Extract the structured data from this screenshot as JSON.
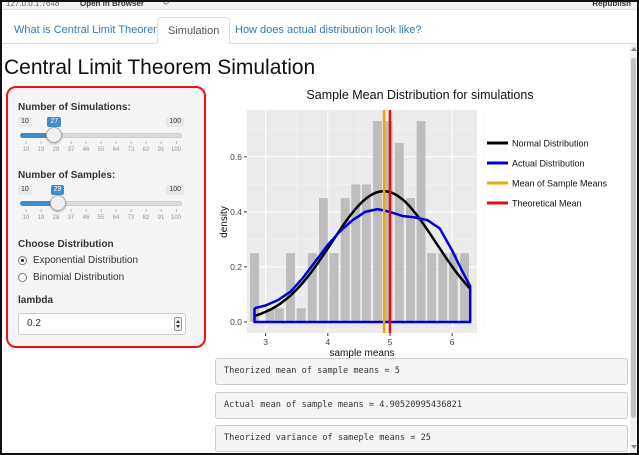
{
  "browser": {
    "url": "127.0.0.1:7648",
    "open_in_browser": "Open in Browser",
    "refresh_icon": "refresh-icon",
    "publish": "Republish"
  },
  "tabs": [
    {
      "label": "What is Central Limit Theorem",
      "active": false
    },
    {
      "label": "Simulation",
      "active": true
    },
    {
      "label": "How does actual distribution look like?",
      "active": false
    }
  ],
  "page_title": "Central Limit Theorem Simulation",
  "sidebar": {
    "simulations": {
      "label": "Number of Simulations:",
      "min": 10,
      "max": 100,
      "value": 27,
      "ticks": [
        "10",
        "19",
        "28",
        "37",
        "46",
        "55",
        "64",
        "73",
        "82",
        "91",
        "100"
      ]
    },
    "samples": {
      "label": "Number of Samples:",
      "min": 10,
      "max": 100,
      "value": 29,
      "ticks": [
        "10",
        "19",
        "28",
        "37",
        "46",
        "55",
        "64",
        "73",
        "82",
        "91",
        "100"
      ]
    },
    "distribution": {
      "label": "Choose Distribution",
      "options": [
        "Exponential Distribution",
        "Binomial Distribution"
      ],
      "selected": "Exponential Distribution"
    },
    "lambda": {
      "label": "lambda",
      "value": "0.2"
    }
  },
  "chart_data": {
    "type": "bar",
    "title": "Sample Mean Distribution for simulations",
    "xlabel": "sample means",
    "ylabel": "density",
    "xlim": [
      2.7,
      6.4
    ],
    "ylim": [
      -0.04,
      0.77
    ],
    "xticks": [
      3,
      4,
      5,
      6
    ],
    "yticks": [
      "0.0",
      "0.2",
      "0.4",
      "0.6"
    ],
    "grid": true,
    "legend_position": "right",
    "bin_width": 0.175,
    "histogram_bins": [
      {
        "x": 2.82,
        "density": 0.25
      },
      {
        "x": 3.07,
        "density": 0.05
      },
      {
        "x": 3.22,
        "density": 0.05
      },
      {
        "x": 3.4,
        "density": 0.25
      },
      {
        "x": 3.57,
        "density": 0.05
      },
      {
        "x": 3.75,
        "density": 0.25
      },
      {
        "x": 3.93,
        "density": 0.45
      },
      {
        "x": 4.1,
        "density": 0.25
      },
      {
        "x": 4.28,
        "density": 0.45
      },
      {
        "x": 4.45,
        "density": 0.5
      },
      {
        "x": 4.62,
        "density": 0.5
      },
      {
        "x": 4.8,
        "density": 0.73
      },
      {
        "x": 4.97,
        "density": 0.73
      },
      {
        "x": 5.15,
        "density": 0.65
      },
      {
        "x": 5.33,
        "density": 0.45
      },
      {
        "x": 5.5,
        "density": 0.73
      },
      {
        "x": 5.67,
        "density": 0.25
      },
      {
        "x": 5.85,
        "density": 0.25
      },
      {
        "x": 6.02,
        "density": 0.25
      },
      {
        "x": 6.2,
        "density": 0.25
      }
    ],
    "series": [
      {
        "name": "Normal Distribution",
        "color": "#000000",
        "kind": "normal",
        "mean": 4.9,
        "sd": 0.84,
        "x_range": [
          2.82,
          6.29
        ]
      },
      {
        "name": "Actual Distribution",
        "color": "#0000dd",
        "kind": "density",
        "points": [
          [
            2.82,
            0.05
          ],
          [
            3.0,
            0.06
          ],
          [
            3.2,
            0.08
          ],
          [
            3.4,
            0.11
          ],
          [
            3.6,
            0.16
          ],
          [
            3.8,
            0.22
          ],
          [
            4.0,
            0.28
          ],
          [
            4.2,
            0.33
          ],
          [
            4.4,
            0.37
          ],
          [
            4.6,
            0.4
          ],
          [
            4.8,
            0.41
          ],
          [
            5.0,
            0.4
          ],
          [
            5.2,
            0.385
          ],
          [
            5.4,
            0.38
          ],
          [
            5.6,
            0.37
          ],
          [
            5.8,
            0.34
          ],
          [
            6.0,
            0.26
          ],
          [
            6.15,
            0.19
          ],
          [
            6.29,
            0.13
          ],
          [
            6.29,
            0.0
          ],
          [
            2.82,
            0.0
          ],
          [
            2.82,
            0.05
          ]
        ]
      },
      {
        "name": "Mean of Sample Means",
        "color": "#f0a500",
        "kind": "vline",
        "x": 4.905
      },
      {
        "name": "Theoretical Mean",
        "color": "#e01010",
        "kind": "vline",
        "x": 5.0
      }
    ]
  },
  "outputs": [
    "Theorized mean of sample means = 5",
    "Actual mean of sample means = 4.90520995436821",
    "Theorized variance of sameple means = 25"
  ]
}
